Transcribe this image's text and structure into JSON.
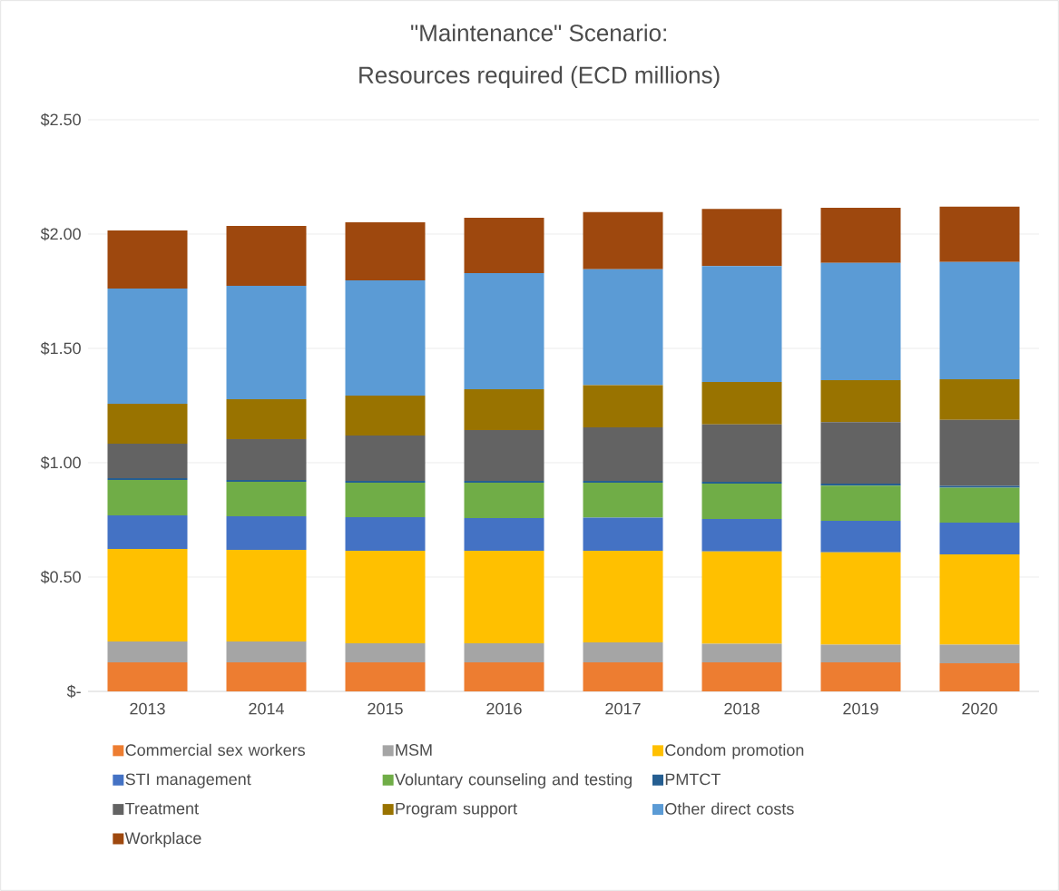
{
  "chart_data": {
    "type": "bar",
    "stacked": true,
    "title": "\"Maintenance\" Scenario:",
    "subtitle": "Resources required (ECD millions)",
    "categories": [
      "2013",
      "2014",
      "2015",
      "2016",
      "2017",
      "2018",
      "2019",
      "2020"
    ],
    "series": [
      {
        "name": "Commercial sex workers",
        "color": "#ed7d31",
        "values": [
          0.127,
          0.127,
          0.127,
          0.127,
          0.127,
          0.127,
          0.127,
          0.123
        ]
      },
      {
        "name": "MSM",
        "color": "#a5a5a5",
        "values": [
          0.091,
          0.091,
          0.083,
          0.083,
          0.087,
          0.081,
          0.077,
          0.081
        ]
      },
      {
        "name": "Condom promotion",
        "color": "#ffc000",
        "values": [
          0.405,
          0.401,
          0.405,
          0.405,
          0.401,
          0.404,
          0.404,
          0.395
        ]
      },
      {
        "name": "STI management",
        "color": "#4472c4",
        "values": [
          0.147,
          0.147,
          0.147,
          0.143,
          0.145,
          0.142,
          0.138,
          0.139
        ]
      },
      {
        "name": "Voluntary counseling and testing",
        "color": "#70ad47",
        "values": [
          0.155,
          0.151,
          0.151,
          0.155,
          0.153,
          0.155,
          0.154,
          0.153
        ]
      },
      {
        "name": "PMTCT",
        "color": "#255e91",
        "values": [
          0.008,
          0.008,
          0.008,
          0.008,
          0.008,
          0.008,
          0.009,
          0.008
        ]
      },
      {
        "name": "Treatment",
        "color": "#636363",
        "values": [
          0.15,
          0.178,
          0.198,
          0.222,
          0.234,
          0.251,
          0.269,
          0.288
        ]
      },
      {
        "name": "Program support",
        "color": "#997300",
        "values": [
          0.175,
          0.175,
          0.175,
          0.178,
          0.184,
          0.185,
          0.183,
          0.178
        ]
      },
      {
        "name": "Other direct costs",
        "color": "#5b9bd5",
        "values": [
          0.504,
          0.496,
          0.504,
          0.508,
          0.507,
          0.507,
          0.513,
          0.513
        ]
      },
      {
        "name": "Workplace",
        "color": "#9e480e",
        "values": [
          0.254,
          0.262,
          0.254,
          0.242,
          0.25,
          0.25,
          0.241,
          0.242
        ]
      }
    ],
    "ylim": [
      0,
      2.5
    ],
    "yticks": [
      {
        "value": 0,
        "label": "$-"
      },
      {
        "value": 0.5,
        "label": "$0.50"
      },
      {
        "value": 1.0,
        "label": "$1.00"
      },
      {
        "value": 1.5,
        "label": "$1.50"
      },
      {
        "value": 2.0,
        "label": "$2.00"
      },
      {
        "value": 2.5,
        "label": "$2.50"
      }
    ],
    "grid": "y",
    "legend": "bottom"
  }
}
